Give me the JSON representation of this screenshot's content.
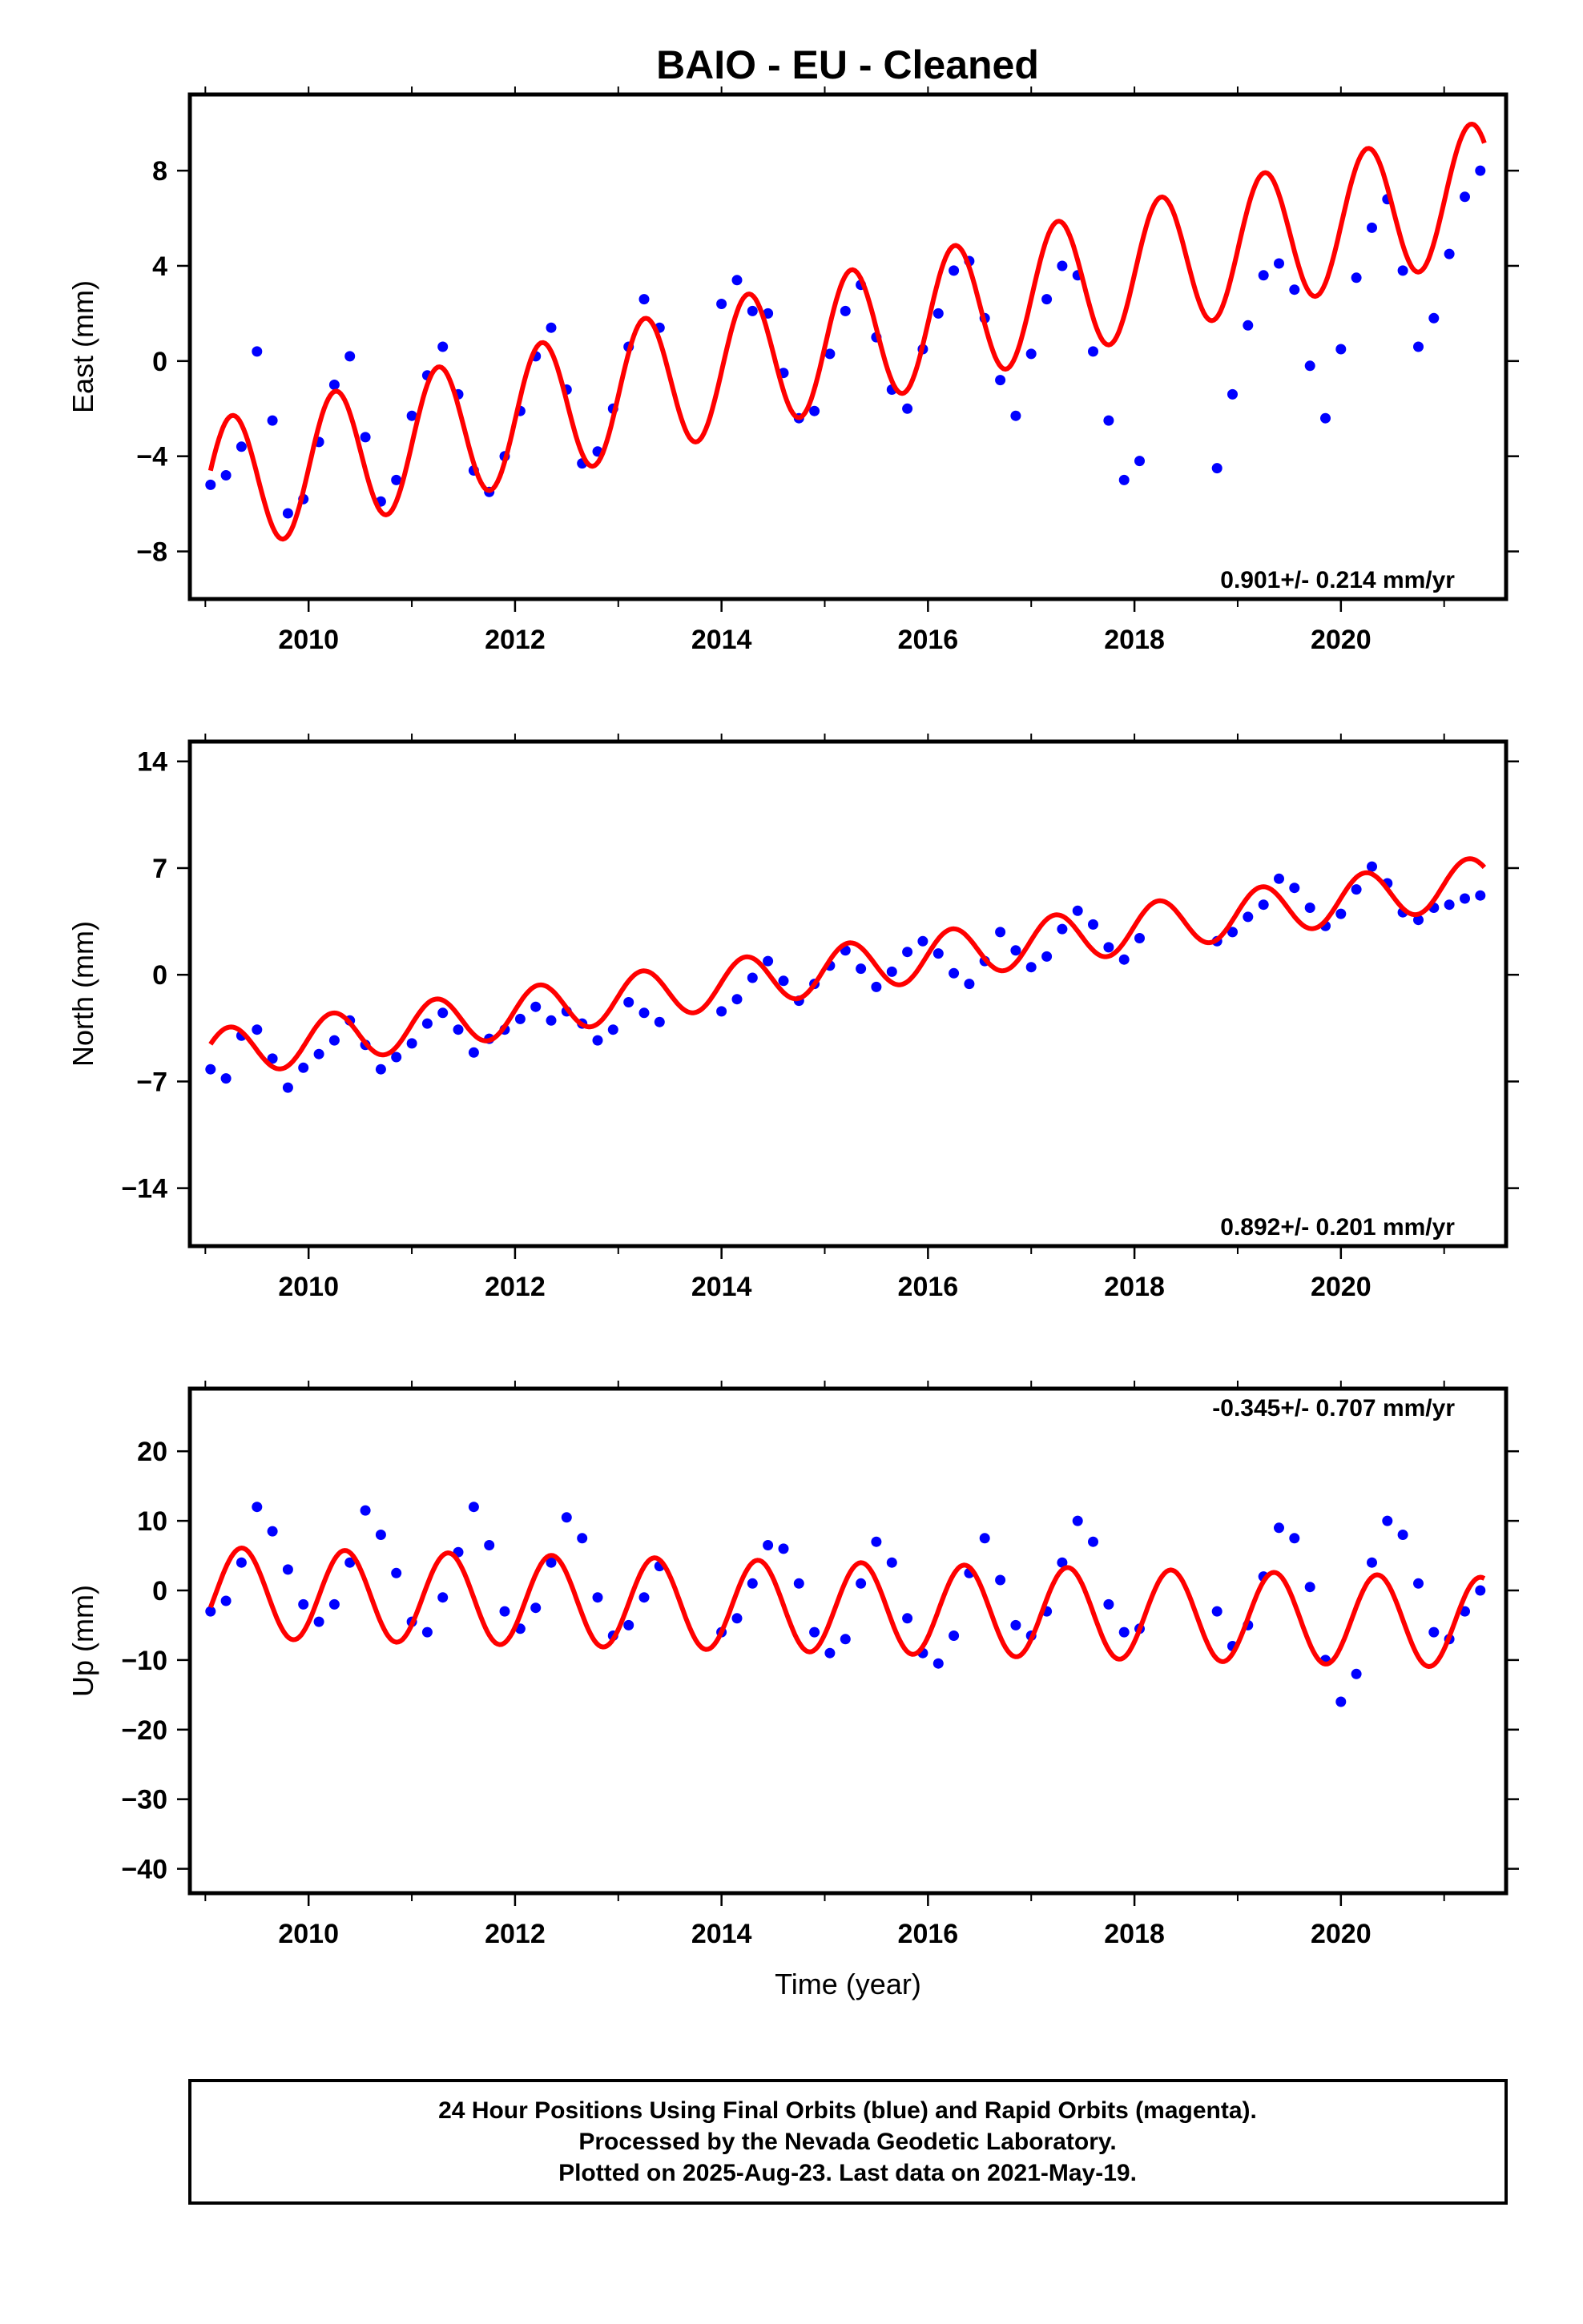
{
  "title": "BAIO  - EU - Cleaned",
  "footer": {
    "line1": "24 Hour Positions Using Final Orbits (blue) and Rapid Orbits (magenta).",
    "line2": "Processed by the Nevada Geodetic Laboratory.",
    "line3": "Plotted on 2025-Aug-23. Last data on 2021-May-19."
  },
  "colors": {
    "observations": "#0000ff",
    "model": "#ff0000",
    "frame": "#000000"
  },
  "chart_data": [
    {
      "type": "scatter",
      "ylabel": "East (mm)",
      "xlabel": "",
      "xlim": [
        2008.85,
        2021.6
      ],
      "ylim": [
        -10,
        11.2
      ],
      "xticks": [
        2010,
        2012,
        2014,
        2016,
        2018,
        2020
      ],
      "yticks": [
        -8,
        -4,
        0,
        4,
        8
      ],
      "ytick_labels": [
        "−8",
        "−4",
        "0",
        "4",
        "8"
      ],
      "rate_label": "0.901+/- 0.214 mm/yr",
      "rate_position": "bottom-right",
      "series": [
        {
          "kind": "points",
          "color": "#0000ff",
          "x": [
            2009.05,
            2009.2,
            2009.35,
            2009.5,
            2009.65,
            2009.8,
            2009.95,
            2010.1,
            2010.25,
            2010.4,
            2010.55,
            2010.7,
            2010.85,
            2011.0,
            2011.15,
            2011.3,
            2011.45,
            2011.6,
            2011.75,
            2011.9,
            2012.05,
            2012.2,
            2012.35,
            2012.5,
            2012.65,
            2012.8,
            2012.95,
            2013.1,
            2013.25,
            2013.4,
            2014.0,
            2014.15,
            2014.3,
            2014.45,
            2014.6,
            2014.75,
            2014.9,
            2015.05,
            2015.2,
            2015.35,
            2015.5,
            2015.65,
            2015.8,
            2015.95,
            2016.1,
            2016.25,
            2016.4,
            2016.55,
            2016.7,
            2016.85,
            2017.0,
            2017.15,
            2017.3,
            2017.45,
            2017.6,
            2017.75,
            2017.9,
            2018.05,
            2018.8,
            2018.95,
            2019.1,
            2019.25,
            2019.4,
            2019.55,
            2019.7,
            2019.85,
            2020.0,
            2020.15,
            2020.3,
            2020.45,
            2020.6,
            2020.75,
            2020.9,
            2021.05,
            2021.2,
            2021.35
          ],
          "y": [
            -5.2,
            -4.8,
            -3.6,
            0.4,
            -2.5,
            -6.4,
            -5.8,
            -3.4,
            -1.0,
            0.2,
            -3.2,
            -5.9,
            -5.0,
            -2.3,
            -0.6,
            0.6,
            -1.4,
            -4.6,
            -5.5,
            -4.0,
            -2.1,
            0.2,
            1.4,
            -1.2,
            -4.3,
            -3.8,
            -2.0,
            0.6,
            2.6,
            1.4,
            2.4,
            3.4,
            2.1,
            2.0,
            -0.5,
            -2.4,
            -2.1,
            0.3,
            2.1,
            3.2,
            1.0,
            -1.2,
            -2.0,
            0.5,
            2.0,
            3.8,
            4.2,
            1.8,
            -0.8,
            -2.3,
            0.3,
            2.6,
            4.0,
            3.6,
            0.4,
            -2.5,
            -5.0,
            -4.2,
            -4.5,
            -1.4,
            1.5,
            3.6,
            4.1,
            3.0,
            -0.2,
            -2.4,
            0.5,
            3.5,
            5.6,
            6.8,
            3.8,
            0.6,
            1.8,
            4.5,
            6.9,
            8.0
          ]
        },
        {
          "kind": "line",
          "name": "",
          "color": "#ff0000",
          "model": {
            "t0": 2009.05,
            "y0": -5.35,
            "rate": 1.02,
            "annual_amp": 2.85,
            "annual_phase": -0.05
          }
        }
      ]
    },
    {
      "type": "scatter",
      "ylabel": "North (mm)",
      "xlabel": "",
      "xlim": [
        2008.85,
        2021.6
      ],
      "ylim": [
        -17.8,
        15.3
      ],
      "xticks": [
        2010,
        2012,
        2014,
        2016,
        2018,
        2020
      ],
      "yticks": [
        -14,
        -7,
        0,
        7,
        14
      ],
      "ytick_labels": [
        "−14",
        "−7",
        "0",
        "7",
        "14"
      ],
      "rate_label": "0.892+/- 0.201 mm/yr",
      "rate_position": "bottom-right",
      "series": [
        {
          "kind": "points",
          "color": "#0000ff",
          "x": [
            2009.05,
            2009.2,
            2009.35,
            2009.5,
            2009.65,
            2009.8,
            2009.95,
            2010.1,
            2010.25,
            2010.4,
            2010.55,
            2010.7,
            2010.85,
            2011.0,
            2011.15,
            2011.3,
            2011.45,
            2011.6,
            2011.75,
            2011.9,
            2012.05,
            2012.2,
            2012.35,
            2012.5,
            2012.65,
            2012.8,
            2012.95,
            2013.1,
            2013.25,
            2013.4,
            2014.0,
            2014.15,
            2014.3,
            2014.45,
            2014.6,
            2014.75,
            2014.9,
            2015.05,
            2015.2,
            2015.35,
            2015.5,
            2015.65,
            2015.8,
            2015.95,
            2016.1,
            2016.25,
            2016.4,
            2016.55,
            2016.7,
            2016.85,
            2017.0,
            2017.15,
            2017.3,
            2017.45,
            2017.6,
            2017.75,
            2017.9,
            2018.05,
            2018.8,
            2018.95,
            2019.1,
            2019.25,
            2019.4,
            2019.55,
            2019.7,
            2019.85,
            2020.0,
            2020.15,
            2020.3,
            2020.45,
            2020.6,
            2020.75,
            2020.9,
            2021.05,
            2021.2,
            2021.35
          ],
          "y": [
            -6.2,
            -6.8,
            -4.0,
            -3.6,
            -5.5,
            -7.4,
            -6.1,
            -5.2,
            -4.3,
            -3.0,
            -4.6,
            -6.2,
            -5.4,
            -4.5,
            -3.2,
            -2.5,
            -3.6,
            -5.1,
            -4.2,
            -3.6,
            -2.9,
            -2.1,
            -3.0,
            -2.4,
            -3.2,
            -4.3,
            -3.6,
            -1.8,
            -2.5,
            -3.1,
            -2.4,
            -1.6,
            -0.2,
            0.9,
            -0.4,
            -1.7,
            -0.6,
            0.6,
            1.6,
            0.4,
            -0.8,
            0.2,
            1.5,
            2.2,
            1.4,
            0.1,
            -0.6,
            0.9,
            2.8,
            1.6,
            0.5,
            1.2,
            3.0,
            4.2,
            3.3,
            1.8,
            1.0,
            2.4,
            2.2,
            2.8,
            3.8,
            4.6,
            6.3,
            5.7,
            4.4,
            3.2,
            4.0,
            5.6,
            7.1,
            6.0,
            4.1,
            3.6,
            4.4,
            4.6,
            5.0,
            5.2
          ]
        },
        {
          "kind": "line",
          "name": "",
          "color": "#ff0000",
          "model": {
            "t0": 2009.05,
            "y0": -5.2,
            "rate": 0.92,
            "annual_amp": 1.6,
            "annual_phase": 0.1
          }
        }
      ]
    },
    {
      "type": "scatter",
      "ylabel": "Up (mm)",
      "xlabel": "Time (year)",
      "xlim": [
        2008.85,
        2021.6
      ],
      "ylim": [
        -43.5,
        29
      ],
      "xticks": [
        2010,
        2012,
        2014,
        2016,
        2018,
        2020
      ],
      "yticks": [
        -40,
        -30,
        -20,
        -10,
        0,
        10,
        20
      ],
      "ytick_labels": [
        "−40",
        "−30",
        "−20",
        "−10",
        "0",
        "10",
        "20"
      ],
      "rate_label": "-0.345+/- 0.707 mm/yr",
      "rate_position": "top-right",
      "series": [
        {
          "kind": "points",
          "color": "#0000ff",
          "x": [
            2009.05,
            2009.2,
            2009.35,
            2009.5,
            2009.65,
            2009.8,
            2009.95,
            2010.1,
            2010.25,
            2010.4,
            2010.55,
            2010.7,
            2010.85,
            2011.0,
            2011.15,
            2011.3,
            2011.45,
            2011.6,
            2011.75,
            2011.9,
            2012.05,
            2012.2,
            2012.35,
            2012.5,
            2012.65,
            2012.8,
            2012.95,
            2013.1,
            2013.25,
            2013.4,
            2014.0,
            2014.15,
            2014.3,
            2014.45,
            2014.6,
            2014.75,
            2014.9,
            2015.05,
            2015.2,
            2015.35,
            2015.5,
            2015.65,
            2015.8,
            2015.95,
            2016.1,
            2016.25,
            2016.4,
            2016.55,
            2016.7,
            2016.85,
            2017.0,
            2017.15,
            2017.3,
            2017.45,
            2017.6,
            2017.75,
            2017.9,
            2018.05,
            2018.8,
            2018.95,
            2019.1,
            2019.25,
            2019.4,
            2019.55,
            2019.7,
            2019.85,
            2020.0,
            2020.15,
            2020.3,
            2020.45,
            2020.6,
            2020.75,
            2020.9,
            2021.05,
            2021.2,
            2021.35
          ],
          "y": [
            -3.0,
            -1.5,
            4.0,
            12.0,
            8.5,
            3.0,
            -2.0,
            -4.5,
            -2.0,
            4.0,
            11.5,
            8.0,
            2.5,
            -4.5,
            -6.0,
            -1.0,
            5.5,
            12.0,
            6.5,
            -3.0,
            -5.5,
            -2.5,
            4.0,
            10.5,
            7.5,
            -1.0,
            -6.5,
            -5.0,
            -1.0,
            3.5,
            -6.0,
            -4.0,
            1.0,
            6.5,
            6.0,
            1.0,
            -6.0,
            -9.0,
            -7.0,
            1.0,
            7.0,
            4.0,
            -4.0,
            -9.0,
            -10.5,
            -6.5,
            2.5,
            7.5,
            1.5,
            -5.0,
            -6.5,
            -3.0,
            4.0,
            10.0,
            7.0,
            -2.0,
            -6.0,
            -5.5,
            -3.0,
            -8.0,
            -5.0,
            2.0,
            9.0,
            7.5,
            0.5,
            -10.0,
            -16.0,
            -12.0,
            4.0,
            10.0,
            8.0,
            1.0,
            -6.0,
            -7.0,
            -3.0,
            0.0
          ]
        },
        {
          "kind": "line",
          "name": "",
          "color": "#ff0000",
          "model": {
            "t0": 2009.05,
            "y0": -0.3,
            "rate": -0.35,
            "annual_amp": 6.5,
            "annual_phase": -0.65
          }
        }
      ]
    }
  ]
}
